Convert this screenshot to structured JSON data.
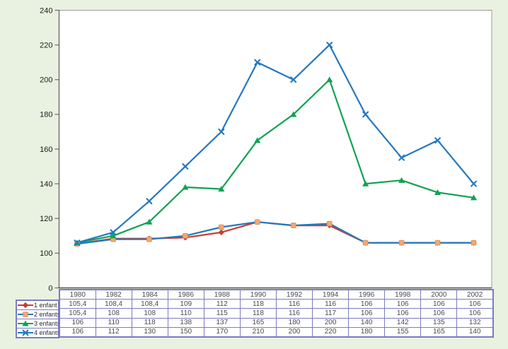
{
  "chart_data": {
    "type": "line",
    "title": "",
    "xlabel": "",
    "ylabel": "",
    "categories": [
      "1980",
      "1982",
      "1984",
      "1986",
      "1988",
      "1990",
      "1992",
      "1994",
      "1996",
      "1998",
      "2000",
      "2002"
    ],
    "y_ticks": [
      240,
      220,
      200,
      180,
      160,
      140,
      120,
      100,
      0
    ],
    "y_axis_note": "scale compressed between 0 and 100 (one tick interval)",
    "grid": false,
    "legend_position": "left-of-table",
    "series": [
      {
        "name": "1 enfant",
        "color": "#c63d33",
        "marker": "diamond",
        "marker_color": "#c63d33",
        "marker_edge": "#c63d33",
        "values": [
          105.4,
          108.4,
          108.4,
          109,
          112,
          118,
          116,
          116,
          106,
          106,
          106,
          106
        ]
      },
      {
        "name": "2 enfants",
        "color": "#2478be",
        "marker": "square",
        "marker_color": "#f5a76d",
        "marker_edge": "#df8a45",
        "values": [
          105.4,
          108,
          108,
          110,
          115,
          118,
          116,
          117,
          106,
          106,
          106,
          106
        ]
      },
      {
        "name": "3 enfants",
        "color": "#12a254",
        "marker": "triangle",
        "marker_color": "#12a254",
        "marker_edge": "#12a254",
        "values": [
          106,
          110,
          118,
          138,
          137,
          165,
          180,
          200,
          140,
          142,
          135,
          132
        ]
      },
      {
        "name": "4 enfants",
        "color": "#2478be",
        "marker": "x",
        "marker_color": "#2478be",
        "marker_edge": "#2478be",
        "values": [
          106,
          112,
          130,
          150,
          170,
          210,
          200,
          220,
          180,
          155,
          165,
          140
        ]
      }
    ]
  },
  "table": {
    "year_header": [
      "1980",
      "1982",
      "1984",
      "1986",
      "1988",
      "1990",
      "1992",
      "1994",
      "1996",
      "1998",
      "2000",
      "2002"
    ],
    "rows": [
      {
        "label": "1 enfant",
        "cells": [
          "105,4",
          "108,4",
          "108,4",
          "109",
          "112",
          "118",
          "116",
          "116",
          "106",
          "106",
          "106",
          "106"
        ]
      },
      {
        "label": "2 enfants",
        "cells": [
          "105,4",
          "108",
          "108",
          "110",
          "115",
          "118",
          "116",
          "117",
          "106",
          "106",
          "106",
          "106"
        ]
      },
      {
        "label": "3 enfants",
        "cells": [
          "106",
          "110",
          "118",
          "138",
          "137",
          "165",
          "180",
          "200",
          "140",
          "142",
          "135",
          "132"
        ]
      },
      {
        "label": "4 enfants",
        "cells": [
          "106",
          "112",
          "130",
          "150",
          "170",
          "210",
          "200",
          "220",
          "180",
          "155",
          "165",
          "140"
        ]
      }
    ]
  },
  "colors": {
    "page_bg": "#e9f2e1",
    "plot_bg": "#ffffff",
    "plot_border": "#9c9c9c",
    "axis": "#6b6b6b",
    "bottom_axis": "#555555",
    "tick_text": "#1c1c1c",
    "table_border": "#7b7bc1",
    "table_text": "#4b4b4b"
  }
}
